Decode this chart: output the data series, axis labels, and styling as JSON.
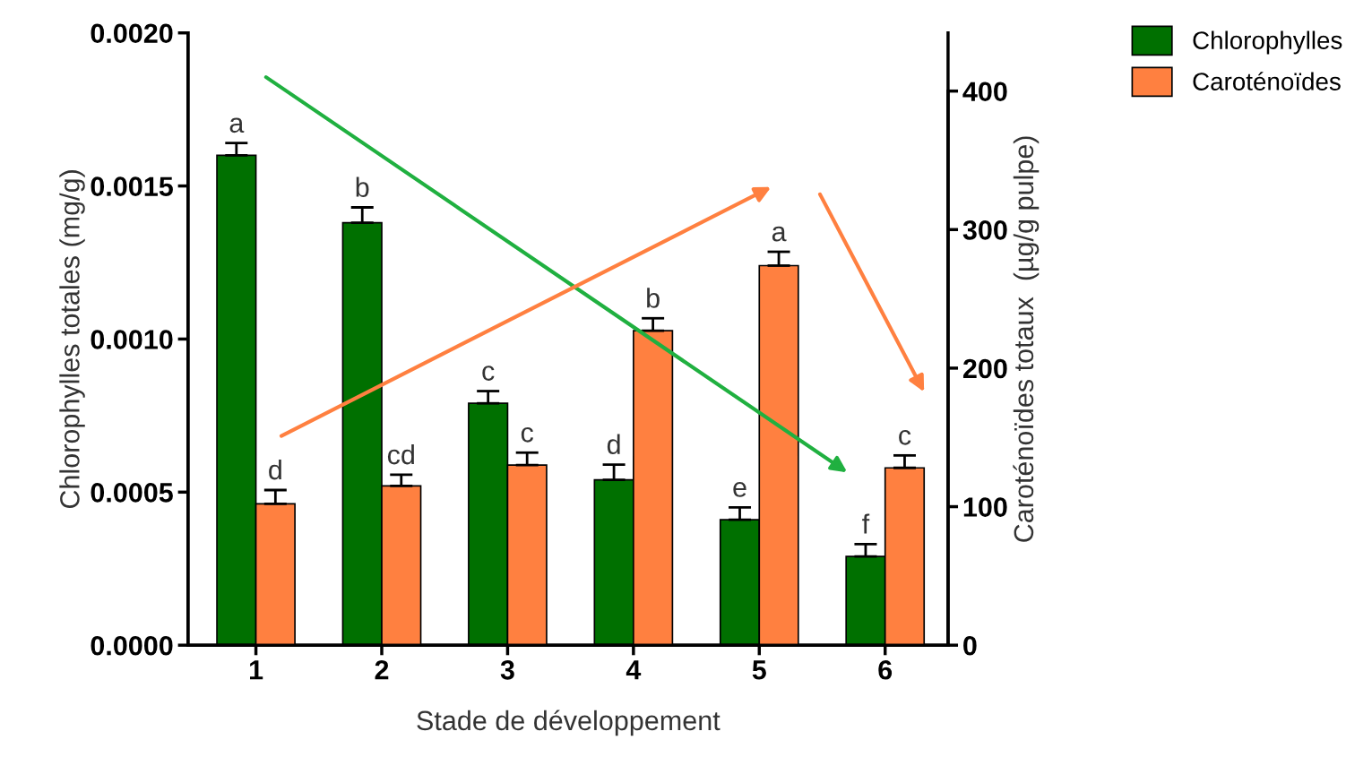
{
  "chart_data": {
    "type": "bar",
    "xlabel": "Stade de développement",
    "ylabel": "Chlorophylles totales (mg/g)",
    "y2label": "Caroténoïdes totaux  (µg/g pulpe)",
    "categories": [
      "1",
      "2",
      "3",
      "4",
      "5",
      "6"
    ],
    "series": [
      {
        "name": "Chlorophylles",
        "color": "#007000",
        "values": [
          0.0016,
          0.00138,
          0.00079,
          0.00054,
          0.00041,
          0.00029
        ],
        "errors": [
          4e-05,
          5e-05,
          4e-05,
          5e-05,
          4e-05,
          4e-05
        ],
        "value_labels": [
          "a",
          "b",
          "c",
          "d",
          "e",
          "f"
        ]
      },
      {
        "name": "Caroténoïdes",
        "color": "#ff8040",
        "axis": "y2",
        "values": [
          102,
          115,
          130,
          227,
          274,
          128
        ],
        "errors": [
          10,
          8,
          9,
          9,
          10,
          9
        ],
        "value_labels": [
          "d",
          "cd",
          "c",
          "b",
          "a",
          "c"
        ]
      }
    ],
    "ylim": [
      0,
      0.002
    ],
    "yticks": [
      {
        "value": 0,
        "label": "0.0000"
      },
      {
        "value": 0.0005,
        "label": "0.0005"
      },
      {
        "value": 0.001,
        "label": "0.0010"
      },
      {
        "value": 0.0015,
        "label": "0.0015"
      },
      {
        "value": 0.002,
        "label": "0.0020"
      }
    ],
    "y2lim": [
      0,
      442
    ],
    "y2ticks": [
      0,
      100,
      200,
      300,
      400
    ],
    "grid": false,
    "legend": "top right"
  }
}
